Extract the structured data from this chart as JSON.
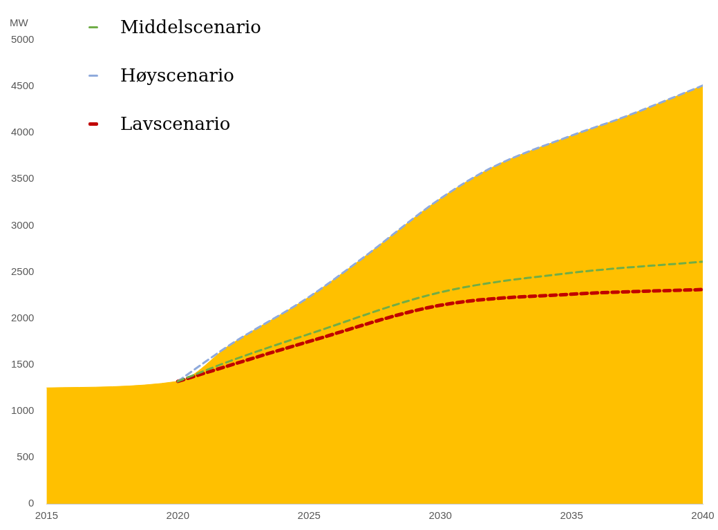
{
  "chart_data": {
    "type": "line",
    "ylabel": "MW",
    "xlim": [
      2015,
      2040
    ],
    "xticks": [
      2015,
      2020,
      2025,
      2030,
      2035,
      2040
    ],
    "ylim": [
      0,
      5000
    ],
    "yticks": [
      0,
      500,
      1000,
      1500,
      2000,
      2500,
      3000,
      3500,
      4000,
      4500,
      5000
    ],
    "grid": false,
    "legend": "top left",
    "marker": "none",
    "series": [
      {
        "type": "area",
        "color": "#ffc000",
        "x": [
          2015,
          2020,
          2022,
          2025,
          2027,
          2030,
          2032,
          2035,
          2037,
          2040
        ],
        "values": [
          1250,
          1320,
          1715,
          2230,
          2640,
          3290,
          3630,
          3970,
          4170,
          4510
        ]
      },
      {
        "name": "Middelscenario",
        "color": "#70ad47",
        "line_style": "dashed",
        "x": [
          2020,
          2022,
          2025,
          2030,
          2035,
          2040
        ],
        "values": [
          1320,
          1540,
          1830,
          2280,
          2490,
          2610
        ]
      },
      {
        "name": "Høyscenario",
        "color": "#8faadc",
        "line_style": "dashed",
        "x": [
          2020,
          2022,
          2025,
          2027,
          2030,
          2032,
          2035,
          2037,
          2040
        ],
        "values": [
          1320,
          1715,
          2230,
          2640,
          3290,
          3630,
          3970,
          4170,
          4510
        ]
      },
      {
        "name": "Lavscenario",
        "color": "#c00000",
        "line_style": "dashed",
        "x": [
          2020,
          2025,
          2030,
          2035,
          2040
        ],
        "values": [
          1320,
          1750,
          2140,
          2260,
          2310
        ]
      }
    ]
  }
}
